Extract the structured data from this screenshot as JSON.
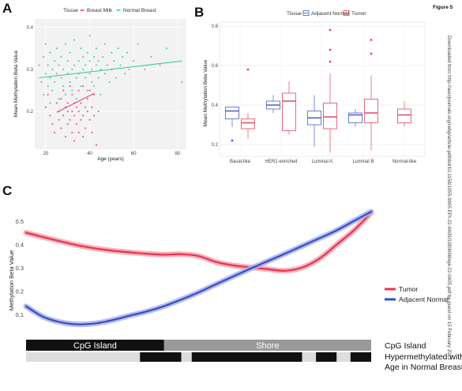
{
  "figure_label": "Figure 5",
  "side_note": "Downloaded from http://aacrjournals.org/cebp/article-pdf/doi/10.1158/1055-9965.EPI-22-0405/3280698/epi-22-0405.pdf by guest on 15 February 2023",
  "chart_data": [
    {
      "panel": "A",
      "type": "scatter",
      "xlabel": "Age (years)",
      "ylabel": "Mean Methylation Beta Value",
      "legend_title": "Tissue",
      "legend_position": "top",
      "xlim": [
        15,
        84
      ],
      "ylim": [
        0.11,
        0.42
      ],
      "xticks": [
        20,
        40,
        60,
        80
      ],
      "yticks": [
        0.2,
        0.3,
        0.4
      ],
      "grid": true,
      "series": [
        {
          "name": "Breast Milk",
          "color": "#e8487a",
          "points": [
            [
              20,
              0.21
            ],
            [
              21,
              0.24
            ],
            [
              22,
              0.19
            ],
            [
              23,
              0.17
            ],
            [
              24,
              0.15
            ],
            [
              25,
              0.22
            ],
            [
              26,
              0.18
            ],
            [
              26,
              0.2
            ],
            [
              27,
              0.23
            ],
            [
              27,
              0.16
            ],
            [
              28,
              0.19
            ],
            [
              28,
              0.25
            ],
            [
              29,
              0.14
            ],
            [
              29,
              0.21
            ],
            [
              30,
              0.2
            ],
            [
              30,
              0.17
            ],
            [
              30,
              0.22
            ],
            [
              31,
              0.18
            ],
            [
              31,
              0.26
            ],
            [
              32,
              0.15
            ],
            [
              32,
              0.2
            ],
            [
              32,
              0.24
            ],
            [
              33,
              0.19
            ],
            [
              33,
              0.13
            ],
            [
              33,
              0.22
            ],
            [
              34,
              0.17
            ],
            [
              34,
              0.21
            ],
            [
              35,
              0.2
            ],
            [
              35,
              0.15
            ],
            [
              35,
              0.25
            ],
            [
              36,
              0.18
            ],
            [
              36,
              0.22
            ],
            [
              37,
              0.14
            ],
            [
              37,
              0.19
            ],
            [
              37,
              0.26
            ],
            [
              38,
              0.21
            ],
            [
              38,
              0.16
            ],
            [
              39,
              0.2
            ],
            [
              39,
              0.23
            ],
            [
              40,
              0.18
            ],
            [
              40,
              0.25
            ],
            [
              41,
              0.15
            ],
            [
              41,
              0.21
            ],
            [
              42,
              0.19
            ],
            [
              42,
              0.24
            ],
            [
              43,
              0.12
            ],
            [
              44,
              0.2
            ]
          ],
          "trend": [
            [
              25,
              0.198
            ],
            [
              42,
              0.243
            ]
          ]
        },
        {
          "name": "Normal Breast",
          "color": "#3fc9a3",
          "points": [
            [
              17,
              0.31
            ],
            [
              18,
              0.27
            ],
            [
              19,
              0.33
            ],
            [
              19,
              0.24
            ],
            [
              20,
              0.29
            ],
            [
              20,
              0.36
            ],
            [
              21,
              0.26
            ],
            [
              21,
              0.31
            ],
            [
              22,
              0.28
            ],
            [
              22,
              0.34
            ],
            [
              22,
              0.22
            ],
            [
              23,
              0.3
            ],
            [
              23,
              0.25
            ],
            [
              24,
              0.32
            ],
            [
              24,
              0.27
            ],
            [
              25,
              0.29
            ],
            [
              25,
              0.35
            ],
            [
              26,
              0.23
            ],
            [
              26,
              0.31
            ],
            [
              27,
              0.28
            ],
            [
              27,
              0.33
            ],
            [
              28,
              0.26
            ],
            [
              28,
              0.3
            ],
            [
              29,
              0.36
            ],
            [
              29,
              0.24
            ],
            [
              30,
              0.29
            ],
            [
              30,
              0.32
            ],
            [
              31,
              0.27
            ],
            [
              31,
              0.34
            ],
            [
              32,
              0.3
            ],
            [
              32,
              0.25
            ],
            [
              33,
              0.31
            ],
            [
              33,
              0.37
            ],
            [
              34,
              0.28
            ],
            [
              34,
              0.23
            ],
            [
              35,
              0.32
            ],
            [
              35,
              0.29
            ],
            [
              36,
              0.35
            ],
            [
              36,
              0.26
            ],
            [
              37,
              0.3
            ],
            [
              37,
              0.33
            ],
            [
              38,
              0.28
            ],
            [
              38,
              0.31
            ],
            [
              39,
              0.25
            ],
            [
              39,
              0.34
            ],
            [
              40,
              0.29
            ],
            [
              40,
              0.32
            ],
            [
              40,
              0.38
            ],
            [
              41,
              0.27
            ],
            [
              41,
              0.3
            ],
            [
              42,
              0.33
            ],
            [
              42,
              0.26
            ],
            [
              43,
              0.31
            ],
            [
              43,
              0.35
            ],
            [
              44,
              0.28
            ],
            [
              44,
              0.32
            ],
            [
              45,
              0.3
            ],
            [
              45,
              0.24
            ],
            [
              46,
              0.33
            ],
            [
              47,
              0.29
            ],
            [
              47,
              0.36
            ],
            [
              48,
              0.31
            ],
            [
              49,
              0.27
            ],
            [
              50,
              0.34
            ],
            [
              50,
              0.3
            ],
            [
              51,
              0.32
            ],
            [
              52,
              0.28
            ],
            [
              53,
              0.35
            ],
            [
              54,
              0.31
            ],
            [
              55,
              0.33
            ],
            [
              56,
              0.29
            ],
            [
              57,
              0.34
            ],
            [
              58,
              0.3
            ],
            [
              60,
              0.32
            ],
            [
              62,
              0.36
            ],
            [
              65,
              0.3
            ],
            [
              68,
              0.33
            ],
            [
              72,
              0.31
            ],
            [
              75,
              0.35
            ],
            [
              82,
              0.27
            ]
          ],
          "trend": [
            [
              17,
              0.28
            ],
            [
              82,
              0.32
            ]
          ]
        }
      ]
    },
    {
      "panel": "B",
      "type": "boxplot",
      "ylabel": "Mean Methylation Beta Value",
      "legend_title": "Tissue",
      "legend_position": "top",
      "ylim": [
        0.14,
        0.82
      ],
      "yticks": [
        0.2,
        0.4,
        0.6,
        0.8
      ],
      "grid": true,
      "categories": [
        "Basal-like",
        "HER2-enriched",
        "Luminal A",
        "Luminal B",
        "Normal-like"
      ],
      "series": [
        {
          "name": "Adjacent Normal",
          "color": "#4a5fc1",
          "boxes": [
            {
              "category": "Basal-like",
              "min": 0.29,
              "q1": 0.33,
              "median": 0.37,
              "q3": 0.39,
              "max": 0.39,
              "outliers": [
                0.22
              ]
            },
            {
              "category": "HER2-enriched",
              "min": 0.36,
              "q1": 0.38,
              "median": 0.4,
              "q3": 0.42,
              "max": 0.45,
              "outliers": []
            },
            {
              "category": "Luminal A",
              "min": 0.19,
              "q1": 0.3,
              "median": 0.335,
              "q3": 0.37,
              "max": 0.45,
              "outliers": []
            },
            {
              "category": "Luminal B",
              "min": 0.29,
              "q1": 0.31,
              "median": 0.35,
              "q3": 0.36,
              "max": 0.38,
              "outliers": []
            }
          ]
        },
        {
          "name": "Tumor",
          "color": "#e0485c",
          "boxes": [
            {
              "category": "Basal-like",
              "min": 0.23,
              "q1": 0.28,
              "median": 0.31,
              "q3": 0.33,
              "max": 0.36,
              "outliers": [
                0.58
              ]
            },
            {
              "category": "HER2-enriched",
              "min": 0.25,
              "q1": 0.27,
              "median": 0.42,
              "q3": 0.46,
              "max": 0.52,
              "outliers": []
            },
            {
              "category": "Luminal A",
              "min": 0.16,
              "q1": 0.28,
              "median": 0.34,
              "q3": 0.41,
              "max": 0.56,
              "outliers": [
                0.62,
                0.68,
                0.78
              ]
            },
            {
              "category": "Luminal B",
              "min": 0.17,
              "q1": 0.31,
              "median": 0.36,
              "q3": 0.43,
              "max": 0.55,
              "outliers": [
                0.66,
                0.73
              ]
            },
            {
              "category": "Normal-like",
              "min": 0.29,
              "q1": 0.31,
              "median": 0.35,
              "q3": 0.38,
              "max": 0.42,
              "outliers": []
            }
          ]
        }
      ]
    },
    {
      "panel": "C",
      "type": "line",
      "ylabel": "Methylation Beta Value",
      "ylim": [
        0.05,
        0.56
      ],
      "yticks": [
        0.1,
        0.2,
        0.3,
        0.4,
        0.5
      ],
      "xlim": [
        0,
        1
      ],
      "legend_position": "right",
      "series": [
        {
          "name": "Tumor",
          "color": "#e8344f",
          "band_color": "#f5a3b0",
          "x": [
            0.0,
            0.05,
            0.1,
            0.15,
            0.2,
            0.25,
            0.3,
            0.35,
            0.4,
            0.45,
            0.5,
            0.55,
            0.6,
            0.65,
            0.7,
            0.75,
            0.8,
            0.85,
            0.9,
            0.95,
            1.0
          ],
          "y": [
            0.45,
            0.431,
            0.413,
            0.396,
            0.383,
            0.373,
            0.366,
            0.36,
            0.356,
            0.358,
            0.35,
            0.325,
            0.31,
            0.302,
            0.294,
            0.287,
            0.301,
            0.339,
            0.399,
            0.46,
            0.535
          ]
        },
        {
          "name": "Adjacent Normal",
          "color": "#3a4cc0",
          "band_color": "#a7b3ea",
          "x": [
            0.0,
            0.05,
            0.1,
            0.15,
            0.2,
            0.25,
            0.3,
            0.35,
            0.4,
            0.45,
            0.5,
            0.55,
            0.6,
            0.65,
            0.7,
            0.75,
            0.8,
            0.85,
            0.9,
            0.95,
            1.0
          ],
          "y": [
            0.135,
            0.09,
            0.067,
            0.058,
            0.062,
            0.076,
            0.095,
            0.113,
            0.136,
            0.164,
            0.195,
            0.229,
            0.263,
            0.296,
            0.328,
            0.36,
            0.393,
            0.426,
            0.46,
            0.5,
            0.54
          ]
        }
      ],
      "tracks": [
        {
          "label": "CpG Island",
          "segments": [
            {
              "label": "CpG Island",
              "start": 0.0,
              "end": 0.4,
              "color": "#111111",
              "text_color": "#ffffff"
            },
            {
              "label": "Shore",
              "start": 0.4,
              "end": 1.0,
              "color": "#999999",
              "text_color": "#ffffff"
            }
          ]
        },
        {
          "label": "Hypermethylated with Age in Normal Breast",
          "segments": [
            {
              "start": 0.0,
              "end": 0.33,
              "color": "#dddddd"
            },
            {
              "start": 0.33,
              "end": 0.45,
              "color": "#111111"
            },
            {
              "start": 0.45,
              "end": 0.48,
              "color": "#dddddd"
            },
            {
              "start": 0.48,
              "end": 0.8,
              "color": "#111111"
            },
            {
              "start": 0.8,
              "end": 0.84,
              "color": "#dddddd"
            },
            {
              "start": 0.84,
              "end": 0.9,
              "color": "#111111"
            },
            {
              "start": 0.9,
              "end": 0.94,
              "color": "#dddddd"
            },
            {
              "start": 0.94,
              "end": 1.0,
              "color": "#111111"
            }
          ]
        }
      ]
    }
  ]
}
